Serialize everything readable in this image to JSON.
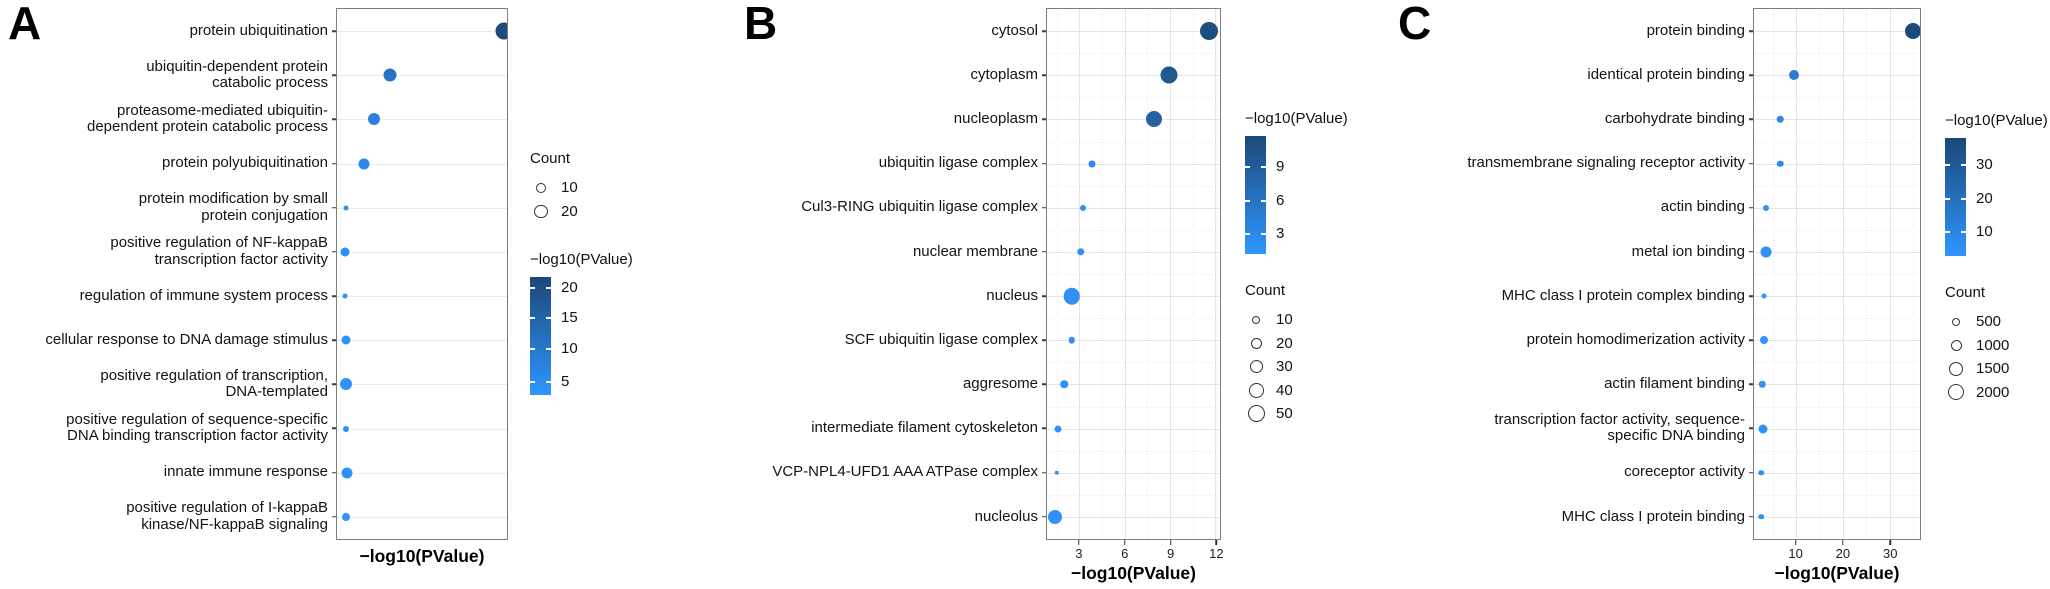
{
  "figure": {
    "background": "#ffffff",
    "description_labels": [
      "A",
      "B",
      "C"
    ]
  },
  "chart_data": [
    {
      "panel": "A",
      "type": "bubble",
      "xlabel": "−log10(PValue)",
      "grid": "horizontal-only",
      "x_axis": {
        "min": 0,
        "max": 1,
        "ticks": [],
        "tick_labels_shown": false
      },
      "rows": [
        {
          "label": "protein ubiquitination",
          "lines": [
            "protein ubiquitination"
          ],
          "x": 0.985,
          "d": 17,
          "count_est": 30,
          "neglog10p_est": 20,
          "color": "#1d4b7d"
        },
        {
          "label": "ubiquitin-dependent protein catabolic process",
          "lines": [
            "ubiquitin-dependent protein",
            "catabolic process"
          ],
          "x": 0.31,
          "d": 13,
          "count_est": 18,
          "neglog10p_est": 7,
          "color": "#2a72c8"
        },
        {
          "label": "proteasome-mediated ubiquitin-dependent protein catabolic process",
          "lines": [
            "proteasome-mediated ubiquitin-",
            "dependent protein catabolic process"
          ],
          "x": 0.22,
          "d": 12,
          "count_est": 16,
          "neglog10p_est": 6,
          "color": "#2c7fdd"
        },
        {
          "label": "protein polyubiquitination",
          "lines": [
            "protein polyubiquitination"
          ],
          "x": 0.16,
          "d": 11,
          "count_est": 13,
          "neglog10p_est": 5,
          "color": "#2e86ea"
        },
        {
          "label": "protein modification by small protein conjugation",
          "lines": [
            "protein modification by small",
            "protein conjugation"
          ],
          "x": 0.055,
          "d": 5,
          "count_est": 3,
          "neglog10p_est": 4,
          "color": "#2f8ff5"
        },
        {
          "label": "positive regulation of NF-kappaB transcription factor activity",
          "lines": [
            "positive regulation of NF-kappaB",
            "transcription factor activity"
          ],
          "x": 0.045,
          "d": 9,
          "count_est": 9,
          "neglog10p_est": 4,
          "color": "#2f8ff5"
        },
        {
          "label": "regulation of immune system process",
          "lines": [
            "regulation of immune system process"
          ],
          "x": 0.045,
          "d": 5,
          "count_est": 3,
          "neglog10p_est": 3,
          "color": "#3092f8"
        },
        {
          "label": "cellular response to DNA damage stimulus",
          "lines": [
            "cellular response to DNA damage stimulus"
          ],
          "x": 0.05,
          "d": 9,
          "count_est": 9,
          "neglog10p_est": 3,
          "color": "#3092f8"
        },
        {
          "label": "positive regulation of transcription, DNA-templated",
          "lines": [
            "positive regulation of transcription,",
            "DNA-templated"
          ],
          "x": 0.055,
          "d": 12,
          "count_est": 16,
          "neglog10p_est": 3,
          "color": "#3092f8"
        },
        {
          "label": "positive regulation of sequence-specific DNA binding transcription factor activity",
          "lines": [
            "positive regulation of sequence-specific",
            "DNA binding transcription factor activity"
          ],
          "x": 0.05,
          "d": 6,
          "count_est": 4,
          "neglog10p_est": 3,
          "color": "#3092f8"
        },
        {
          "label": "innate immune response",
          "lines": [
            "innate immune response"
          ],
          "x": 0.06,
          "d": 11,
          "count_est": 13,
          "neglog10p_est": 3,
          "color": "#3092f8"
        },
        {
          "label": "positive regulation of I-kappaB kinase/NF-kappaB signaling",
          "lines": [
            "positive regulation of I-kappaB",
            "kinase/NF-kappaB signaling"
          ],
          "x": 0.05,
          "d": 8,
          "count_est": 7,
          "neglog10p_est": 3,
          "color": "#3092f8"
        }
      ],
      "legend": {
        "order": [
          "count",
          "colorbar"
        ],
        "count": {
          "title": "Count",
          "items": [
            {
              "label": "10",
              "d": 10
            },
            {
              "label": "20",
              "d": 13.5
            }
          ]
        },
        "colorbar": {
          "title": "−log10(PValue)",
          "color_top": "#1c4878",
          "color_bottom": "#2e96ff",
          "ticks": [
            {
              "label": "20",
              "pos": 0.09
            },
            {
              "label": "15",
              "pos": 0.35
            },
            {
              "label": "10",
              "pos": 0.61
            },
            {
              "label": "5",
              "pos": 0.89
            }
          ]
        }
      }
    },
    {
      "panel": "B",
      "type": "bubble",
      "xlabel": "−log10(PValue)",
      "grid": "full",
      "x_axis": {
        "min": 0.85,
        "max": 12.3,
        "ticks": [
          3,
          6,
          9,
          12
        ],
        "tick_labels_shown": true
      },
      "rows": [
        {
          "label": "cytosol",
          "lines": [
            "cytosol"
          ],
          "x": 11.6,
          "d": 18,
          "count_est": 55,
          "neglog10p_est": 11,
          "color": "#1d4e80"
        },
        {
          "label": "cytoplasm",
          "lines": [
            "cytoplasm"
          ],
          "x": 8.9,
          "d": 17,
          "count_est": 50,
          "neglog10p_est": 10,
          "color": "#205891"
        },
        {
          "label": "nucleoplasm",
          "lines": [
            "nucleoplasm"
          ],
          "x": 7.9,
          "d": 16,
          "count_est": 45,
          "neglog10p_est": 9,
          "color": "#25629f"
        },
        {
          "label": "ubiquitin ligase complex",
          "lines": [
            "ubiquitin ligase complex"
          ],
          "x": 3.8,
          "d": 7,
          "count_est": 7,
          "neglog10p_est": 3,
          "color": "#2e8af0"
        },
        {
          "label": "Cul3-RING ubiquitin ligase complex",
          "lines": [
            "Cul3-RING ubiquitin ligase complex"
          ],
          "x": 3.2,
          "d": 6,
          "count_est": 5,
          "neglog10p_est": 3,
          "color": "#2f8df4"
        },
        {
          "label": "nuclear membrane",
          "lines": [
            "nuclear membrane"
          ],
          "x": 3.1,
          "d": 7.5,
          "count_est": 8,
          "neglog10p_est": 3,
          "color": "#2f8df4"
        },
        {
          "label": "nucleus",
          "lines": [
            "nucleus"
          ],
          "x": 2.5,
          "d": 16.5,
          "count_est": 47,
          "neglog10p_est": 2.5,
          "color": "#3090f7"
        },
        {
          "label": "SCF ubiquitin ligase complex",
          "lines": [
            "SCF ubiquitin ligase complex"
          ],
          "x": 2.5,
          "d": 6.5,
          "count_est": 6,
          "neglog10p_est": 2.5,
          "color": "#3090f7"
        },
        {
          "label": "aggresome",
          "lines": [
            "aggresome"
          ],
          "x": 2.0,
          "d": 7.5,
          "count_est": 8,
          "neglog10p_est": 2.5,
          "color": "#3090f7"
        },
        {
          "label": "intermediate filament cytoskeleton",
          "lines": [
            "intermediate filament cytoskeleton"
          ],
          "x": 1.6,
          "d": 7,
          "count_est": 7,
          "neglog10p_est": 2,
          "color": "#3092f8"
        },
        {
          "label": "VCP-NPL4-UFD1 AAA ATPase complex",
          "lines": [
            "VCP-NPL4-UFD1 AAA ATPase complex"
          ],
          "x": 1.5,
          "d": 4.5,
          "count_est": 3,
          "neglog10p_est": 2,
          "color": "#3092f8"
        },
        {
          "label": "nucleolus",
          "lines": [
            "nucleolus"
          ],
          "x": 1.4,
          "d": 14,
          "count_est": 35,
          "neglog10p_est": 2,
          "color": "#3092f8"
        }
      ],
      "legend": {
        "order": [
          "colorbar",
          "count"
        ],
        "colorbar": {
          "title": "−log10(PValue)",
          "color_top": "#1c4878",
          "color_bottom": "#2e96ff",
          "ticks": [
            {
              "label": "9",
              "pos": 0.26
            },
            {
              "label": "6",
              "pos": 0.55
            },
            {
              "label": "3",
              "pos": 0.83
            }
          ]
        },
        "count": {
          "title": "Count",
          "items": [
            {
              "label": "10",
              "d": 8
            },
            {
              "label": "20",
              "d": 11
            },
            {
              "label": "30",
              "d": 13
            },
            {
              "label": "40",
              "d": 15
            },
            {
              "label": "50",
              "d": 17
            }
          ]
        }
      }
    },
    {
      "panel": "C",
      "type": "bubble",
      "xlabel": "−log10(PValue)",
      "grid": "full",
      "x_axis": {
        "min": 1.0,
        "max": 36.5,
        "ticks": [
          10,
          20,
          30
        ],
        "tick_labels_shown": true
      },
      "rows": [
        {
          "label": "protein binding",
          "lines": [
            "protein binding"
          ],
          "x": 34.9,
          "d": 16,
          "count_est": 2000,
          "neglog10p_est": 35,
          "color": "#1d4a7a"
        },
        {
          "label": "identical protein binding",
          "lines": [
            "identical protein binding"
          ],
          "x": 9.6,
          "d": 10,
          "count_est": 800,
          "neglog10p_est": 12,
          "color": "#2a79d2"
        },
        {
          "label": "carbohydrate binding",
          "lines": [
            "carbohydrate binding"
          ],
          "x": 6.6,
          "d": 6.5,
          "count_est": 350,
          "neglog10p_est": 8,
          "color": "#2e88ec"
        },
        {
          "label": "transmembrane signaling receptor activity",
          "lines": [
            "transmembrane signaling receptor activity"
          ],
          "x": 6.6,
          "d": 6.5,
          "count_est": 350,
          "neglog10p_est": 8,
          "color": "#2e88ec"
        },
        {
          "label": "actin binding",
          "lines": [
            "actin binding"
          ],
          "x": 3.6,
          "d": 6,
          "count_est": 300,
          "neglog10p_est": 5,
          "color": "#2f90f5"
        },
        {
          "label": "metal ion binding",
          "lines": [
            "metal ion binding"
          ],
          "x": 3.6,
          "d": 11,
          "count_est": 1000,
          "neglog10p_est": 5,
          "color": "#2f90f5"
        },
        {
          "label": "MHC class I protein complex binding",
          "lines": [
            "MHC class I protein complex binding"
          ],
          "x": 3.2,
          "d": 5,
          "count_est": 250,
          "neglog10p_est": 4,
          "color": "#3092f8"
        },
        {
          "label": "protein homodimerization activity",
          "lines": [
            "protein homodimerization activity"
          ],
          "x": 3.2,
          "d": 8,
          "count_est": 500,
          "neglog10p_est": 4,
          "color": "#3092f8"
        },
        {
          "label": "actin filament binding",
          "lines": [
            "actin filament binding"
          ],
          "x": 2.8,
          "d": 6.5,
          "count_est": 350,
          "neglog10p_est": 4,
          "color": "#3092f8"
        },
        {
          "label": "transcription factor activity, sequence-specific DNA binding",
          "lines": [
            "transcription factor activity, sequence-",
            "specific DNA binding"
          ],
          "x": 3.0,
          "d": 9,
          "count_est": 650,
          "neglog10p_est": 4,
          "color": "#3092f8"
        },
        {
          "label": "coreceptor activity",
          "lines": [
            "coreceptor activity"
          ],
          "x": 2.6,
          "d": 5.5,
          "count_est": 270,
          "neglog10p_est": 4,
          "color": "#3092f8"
        },
        {
          "label": "MHC class I protein binding",
          "lines": [
            "MHC class I protein binding"
          ],
          "x": 2.6,
          "d": 5.5,
          "count_est": 270,
          "neglog10p_est": 4,
          "color": "#3092f8"
        }
      ],
      "legend": {
        "order": [
          "colorbar",
          "count"
        ],
        "colorbar": {
          "title": "−log10(PValue)",
          "color_top": "#1c4878",
          "color_bottom": "#2e96ff",
          "ticks": [
            {
              "label": "30",
              "pos": 0.23
            },
            {
              "label": "20",
              "pos": 0.52
            },
            {
              "label": "10",
              "pos": 0.8
            }
          ]
        },
        "count": {
          "title": "Count",
          "items": [
            {
              "label": "500",
              "d": 8
            },
            {
              "label": "1000",
              "d": 11
            },
            {
              "label": "1500",
              "d": 14
            },
            {
              "label": "2000",
              "d": 16
            }
          ]
        }
      }
    }
  ]
}
